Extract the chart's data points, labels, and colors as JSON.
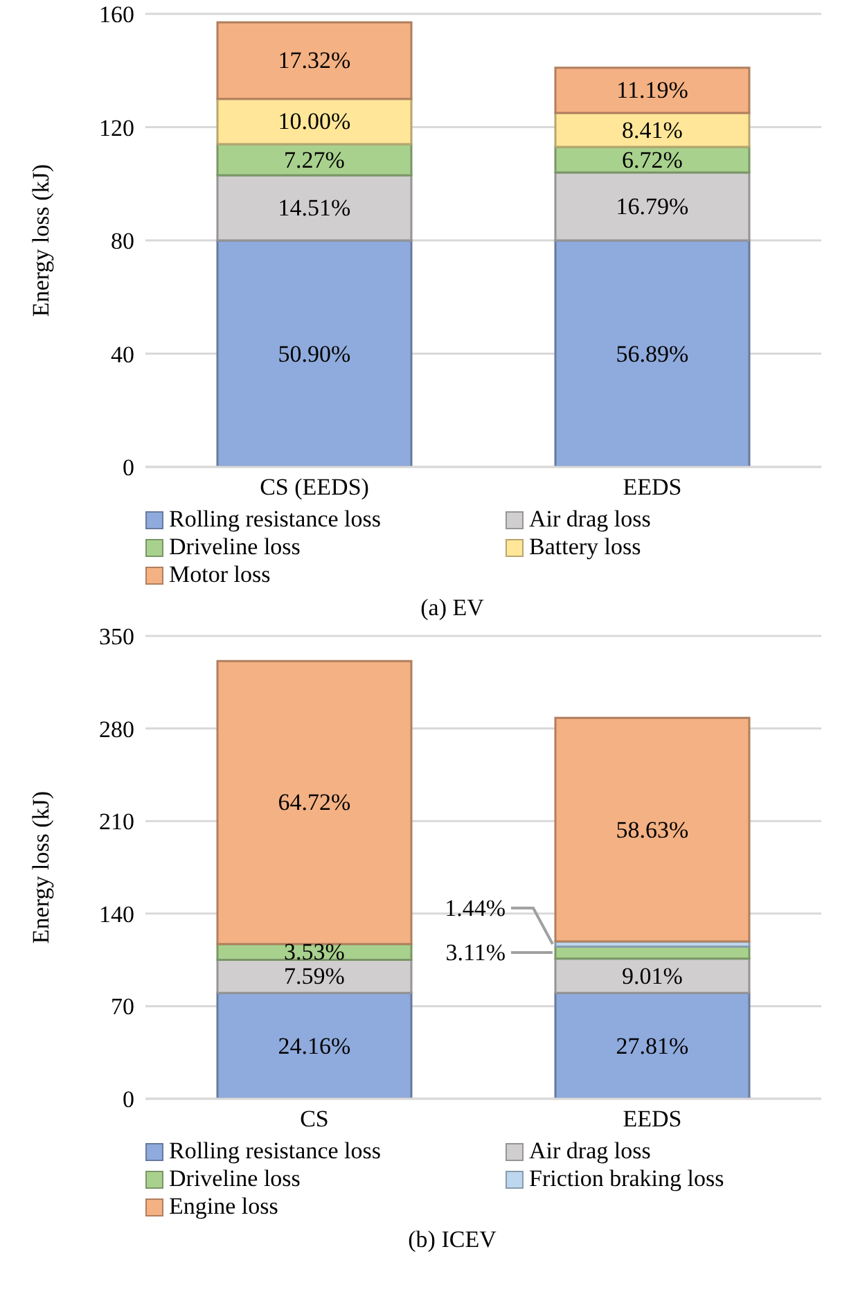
{
  "chart_data": [
    {
      "type": "bar",
      "title": "(a) EV",
      "ylabel": "Energy loss (kJ)",
      "categories": [
        "CS (EEDS)",
        "EEDS"
      ],
      "stacked": true,
      "ylim": [
        0,
        160
      ],
      "yticks": [
        0,
        40,
        80,
        120,
        160
      ],
      "grid": "y",
      "legend": "bottom",
      "series": [
        {
          "name": "Rolling resistance loss",
          "color": "#8faadc",
          "values": [
            80,
            80
          ]
        },
        {
          "name": "Air drag loss",
          "color": "#d0cece",
          "values": [
            23,
            24
          ]
        },
        {
          "name": "Driveline loss",
          "color": "#a9d18e",
          "values": [
            11,
            9
          ]
        },
        {
          "name": "Battery loss",
          "color": "#ffe699",
          "values": [
            16,
            12
          ]
        },
        {
          "name": "Motor loss",
          "color": "#f4b183",
          "values": [
            27,
            16
          ]
        }
      ],
      "annotations": [
        "50.90%",
        "14.51%",
        "7.27%",
        "10.00%",
        "17.32%",
        "56.89%",
        "16.79%",
        "6.72%",
        "8.41%",
        "11.19%"
      ]
    },
    {
      "type": "bar",
      "title": "(b) ICEV",
      "ylabel": "Energy loss (kJ)",
      "categories": [
        "CS",
        "EEDS"
      ],
      "stacked": true,
      "ylim": [
        0,
        350
      ],
      "yticks": [
        0,
        70,
        140,
        210,
        280,
        350
      ],
      "grid": "y",
      "legend": "bottom",
      "series": [
        {
          "name": "Rolling resistance loss",
          "color": "#8faadc",
          "values": [
            80,
            80
          ]
        },
        {
          "name": "Air drag loss",
          "color": "#d0cece",
          "values": [
            25,
            26
          ]
        },
        {
          "name": "Driveline loss",
          "color": "#a9d18e",
          "values": [
            12,
            9
          ]
        },
        {
          "name": "Friction braking loss",
          "color": "#bdd7ee",
          "values": [
            0,
            4
          ]
        },
        {
          "name": "Engine loss",
          "color": "#f4b183",
          "values": [
            214,
            169
          ]
        }
      ],
      "annotations": [
        "24.16%",
        "7.59%",
        "3.53%",
        "64.72%",
        "27.81%",
        "9.01%",
        "3.11%",
        "1.44%",
        "58.63%"
      ]
    }
  ]
}
